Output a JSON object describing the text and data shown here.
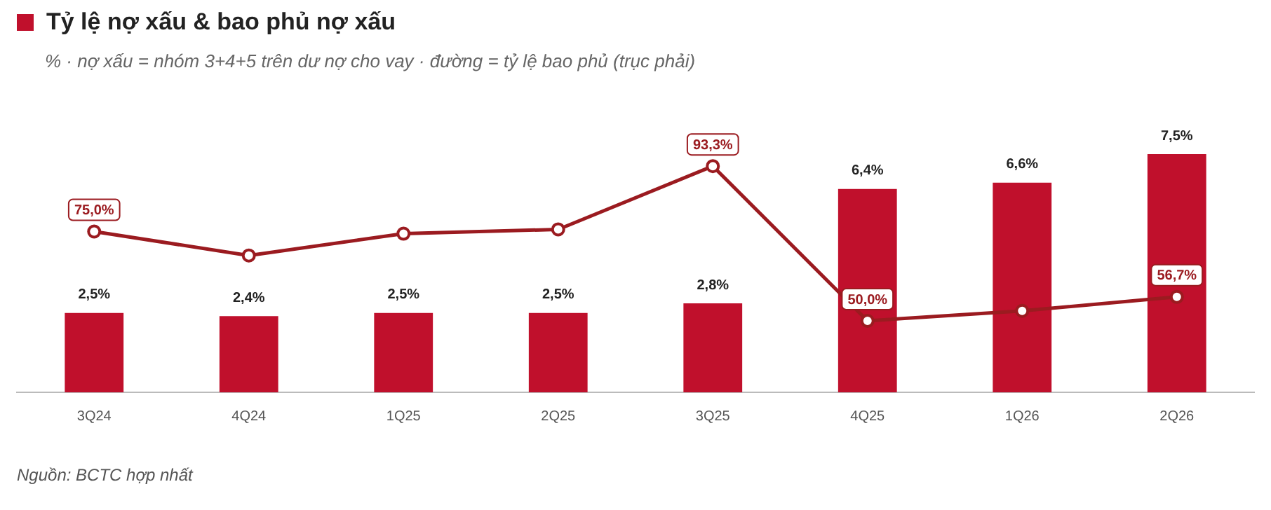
{
  "chart_data": {
    "type": "bar",
    "title": "Tỷ lệ nợ xấu & bao phủ nợ xấu",
    "subtitle": "% · nợ xấu = nhóm 3+4+5 trên dư nợ cho vay · đường = tỷ lệ bao phủ (trục phải)",
    "annotations": [
      "Nguồn: BCTC hợp nhất"
    ],
    "categories": [
      "3Q24",
      "4Q24",
      "1Q25",
      "2Q25",
      "3Q25",
      "4Q25",
      "1Q26",
      "2Q26"
    ],
    "series": [
      {
        "color": "#c0102c",
        "values": [
          2.5,
          2.4,
          2.5,
          2.5,
          2.8,
          6.4,
          6.6,
          7.5
        ],
        "value_labels": [
          "2,5%",
          "2,4%",
          "2,5%",
          "2,5%",
          "2,8%",
          "6,4%",
          "6,6%",
          "7,5%"
        ]
      },
      {
        "type": "line",
        "axis": "y2",
        "color": "#9b1b20",
        "marker": "circle",
        "values": [
          75.0,
          68.3,
          74.4,
          75.6,
          93.3,
          50.0,
          52.8,
          56.7
        ],
        "value_labels": [
          "75,0%",
          null,
          null,
          null,
          "93,3%",
          "50,0%",
          null,
          "56,7%"
        ]
      }
    ],
    "tick_labels": "x",
    "grid": false,
    "legend": false
  }
}
